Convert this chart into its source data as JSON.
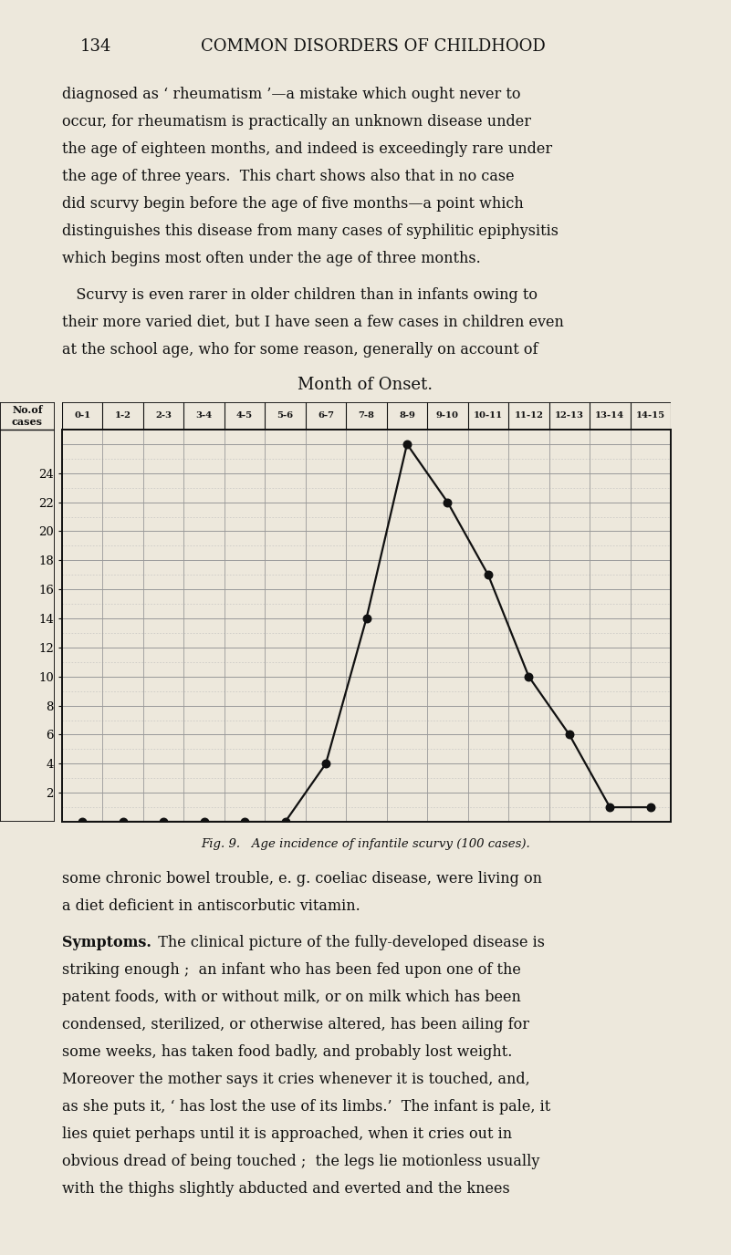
{
  "title": "Month of Onset.",
  "col_labels": [
    "0-1",
    "1-2",
    "2-3",
    "3-4",
    "4-5",
    "5-6",
    "6-7",
    "7-8",
    "8-9",
    "9-10",
    "10-11",
    "11-12",
    "12-13",
    "13-14",
    "14-15"
  ],
  "y_values": [
    0,
    0,
    0,
    0,
    0,
    0,
    4,
    14,
    26,
    22,
    17,
    10,
    6,
    1,
    1
  ],
  "y_ticks": [
    2,
    4,
    6,
    8,
    10,
    12,
    14,
    16,
    18,
    20,
    22,
    24
  ],
  "y_max": 27,
  "bg_color": "#EDE8DC",
  "grid_major_color": "#999999",
  "grid_minor_color": "#bbbbbb",
  "line_color": "#111111",
  "dot_color": "#111111",
  "text_color": "#111111",
  "caption": "Fig. 9.   Age incidence of infantile scurvy (100 cases).",
  "page_header_num": "134",
  "page_header_title": "COMMON DISORDERS OF CHILDHOOD",
  "para1_lines": [
    "diagnosed as ‘ rheumatism ’—a mistake which ought never to",
    "occur, for rheumatism is practically an unknown disease under",
    "the age of eighteen months, and indeed is exceedingly rare under",
    "the age of three years.  This chart shows also that in no case",
    "did scurvy begin before the age of five months—a point which",
    "distinguishes this disease from many cases of syphilitic epiphysitis",
    "which begins most often under the age of three months."
  ],
  "para2_lines": [
    "   Scurvy is even rarer in older children than in infants owing to",
    "their more varied diet, but I have seen a few cases in children even",
    "at the school age, who for some reason, generally on account of"
  ],
  "para3_lines": [
    "some chronic bowel trouble, e. g. coeliac disease, were living on",
    "a diet deficient in antiscorbutic vitamin."
  ],
  "para4_prefix": "Symptoms.",
  "para4_lines": [
    "  The clinical picture of the fully-developed disease is",
    "striking enough ;  an infant who has been fed upon one of the",
    "patent foods, with or without milk, or on milk which has been",
    "condensed, sterilized, or otherwise altered, has been ailing for",
    "some weeks, has taken food badly, and probably lost weight.",
    "Moreover the mother says it cries whenever it is touched, and,",
    "as she puts it, ‘ has lost the use of its limbs.’  The infant is pale, it",
    "lies quiet perhaps until it is approached, when it cries out in",
    "obvious dread of being touched ;  the legs lie motionless usually",
    "with the thighs slightly abducted and everted and the knees"
  ],
  "fig_width": 8.01,
  "fig_height": 13.76,
  "dpi": 100
}
